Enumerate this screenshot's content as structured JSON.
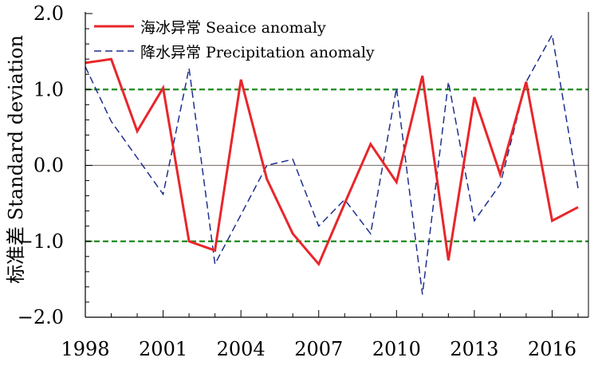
{
  "chart_data": {
    "type": "line",
    "ylabel": "标准差 Standard deviation",
    "x": [
      1998,
      1999,
      2000,
      2001,
      2002,
      2003,
      2004,
      2005,
      2006,
      2007,
      2008,
      2009,
      2010,
      2011,
      2012,
      2013,
      2014,
      2015,
      2016,
      2017
    ],
    "xlim": [
      1998,
      2017.4
    ],
    "ylim": [
      -2.0,
      2.0
    ],
    "xticks": [
      1998,
      2001,
      2004,
      2007,
      2010,
      2013,
      2016
    ],
    "xtick_labels": [
      "1998",
      "2001",
      "2004",
      "2007",
      "2010",
      "2013",
      "2016"
    ],
    "yticks": [
      2.0,
      1.0,
      0.0,
      -1.0,
      -2.0
    ],
    "ytick_labels": [
      "2.0",
      "1.0",
      "0.0",
      "−1.0",
      "−2.0"
    ],
    "series": [
      {
        "name": "海冰异常 Seaice anomaly",
        "color": "#e8262b",
        "style": "solid",
        "values": [
          1.35,
          1.4,
          0.45,
          1.02,
          -1.0,
          -1.12,
          1.13,
          -0.18,
          -0.9,
          -1.3,
          -0.5,
          0.28,
          -0.22,
          1.18,
          -1.25,
          0.9,
          -0.12,
          1.1,
          -0.73,
          -0.55
        ]
      },
      {
        "name": "降水异常 Precipitation anomaly",
        "color": "#1f2f8f",
        "style": "dashed",
        "values": [
          1.3,
          0.58,
          0.1,
          -0.38,
          1.28,
          -1.3,
          -0.65,
          0.0,
          0.08,
          -0.8,
          -0.45,
          -0.9,
          1.02,
          -1.7,
          1.1,
          -0.73,
          -0.25,
          1.1,
          1.72,
          -0.3
        ]
      }
    ],
    "reference_lines": [
      {
        "value": 1.0,
        "color": "#1c8a1c",
        "style": "dashed"
      },
      {
        "value": -1.0,
        "color": "#1c8a1c",
        "style": "dashed"
      },
      {
        "value": 0.0,
        "color": "#8a7f7a",
        "style": "solid"
      }
    ],
    "legend_position": "top-left"
  }
}
